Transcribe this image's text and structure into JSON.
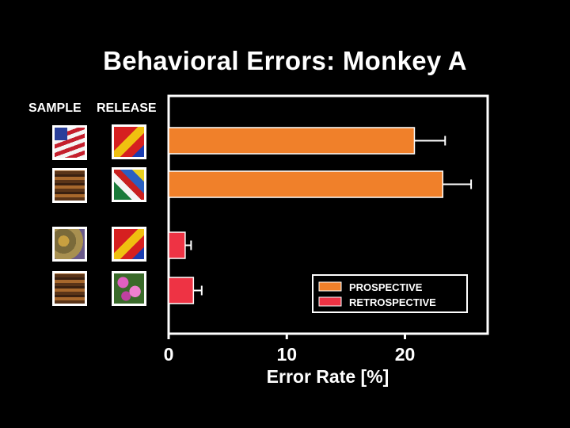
{
  "title": "Behavioral Errors: Monkey A",
  "column_labels": {
    "sample": "SAMPLE",
    "release": "RELEASE"
  },
  "colors": {
    "background": "#000000",
    "prospective": "#F0802A",
    "retrospective": "#EE3344",
    "axis": "#FFFFFF"
  },
  "image_rows": [
    {
      "sample_icon": "flag-image",
      "release_icon": "cartoon-image"
    },
    {
      "sample_icon": "brown-texture-image",
      "release_icon": "sailboat-image"
    },
    {
      "sample_icon": "map-texture-image",
      "release_icon": "cartoon-image"
    },
    {
      "sample_icon": "brown-texture-image",
      "release_icon": "flowers-image"
    }
  ],
  "chart_data": {
    "type": "bar",
    "orientation": "horizontal",
    "xlabel": "Error Rate [%]",
    "xlim": [
      0,
      27
    ],
    "xticks": [
      0,
      10,
      20
    ],
    "xtick_labels": [
      "0",
      "10",
      "20"
    ],
    "grid": false,
    "legend_position": "bottom-right",
    "bars": [
      {
        "series": "PROSPECTIVE",
        "value": 20.8,
        "error": 2.6
      },
      {
        "series": "PROSPECTIVE",
        "value": 23.2,
        "error": 2.4
      },
      {
        "series": "RETROSPECTIVE",
        "value": 1.4,
        "error": 0.5
      },
      {
        "series": "RETROSPECTIVE",
        "value": 2.1,
        "error": 0.7
      }
    ],
    "legend": [
      {
        "label": "PROSPECTIVE",
        "color": "#F0802A"
      },
      {
        "label": "RETROSPECTIVE",
        "color": "#EE3344"
      }
    ]
  }
}
